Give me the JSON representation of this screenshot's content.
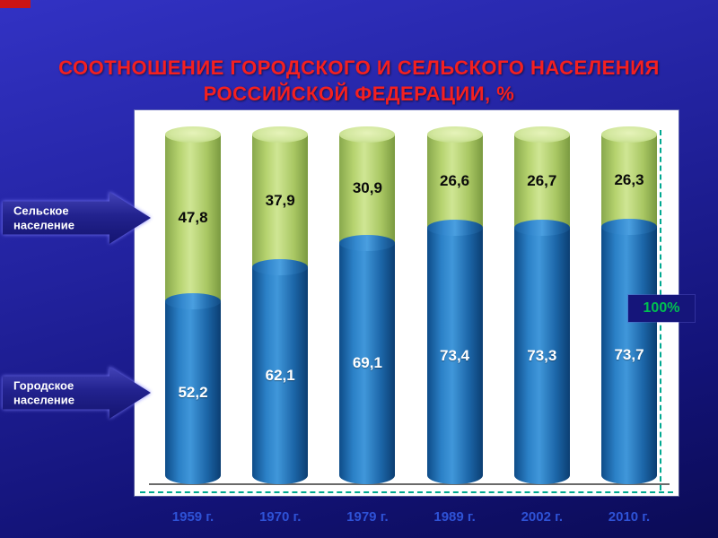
{
  "slide": {
    "title_line1": "СООТНОШЕНИЕ ГОРОДСКОГО И СЕЛЬСКОГО НАСЕЛЕНИЯ",
    "title_line2": "РОССИЙСКОЙ ФЕДЕРАЦИИ, %",
    "left_labels": [
      {
        "line1": "Сельское",
        "line2": "население"
      },
      {
        "line1": "Городское",
        "line2": "население"
      }
    ],
    "axis_label_100": "100%"
  },
  "colors": {
    "title_red": "#f42020",
    "urban_blue": "#1e6fb5",
    "rural_green": "#b9d379",
    "percent_green": "#00c050",
    "background_blue": "#22229e",
    "year_label_blue": "#2e52d6",
    "dashed_gridline_teal": "#00a890"
  },
  "chart_data": {
    "type": "bar",
    "stacked": true,
    "title": "Соотношение городского и сельского населения Российской Федерации, %",
    "categories": [
      "1959 г.",
      "1970 г.",
      "1979 г.",
      "1989 г.",
      "2002 г.",
      "2010 г."
    ],
    "series": [
      {
        "name": "Городское население",
        "color": "#1e6fb5",
        "values": [
          52.2,
          62.1,
          69.1,
          73.4,
          73.3,
          73.7
        ]
      },
      {
        "name": "Сельское население",
        "color": "#b9d379",
        "values": [
          47.8,
          37.9,
          30.9,
          26.6,
          26.7,
          26.3
        ]
      }
    ],
    "ylim": [
      0,
      100
    ],
    "ylabel": "",
    "xlabel": "",
    "legend_position": "left-arrows",
    "grid": false,
    "decimal_separator": ","
  }
}
